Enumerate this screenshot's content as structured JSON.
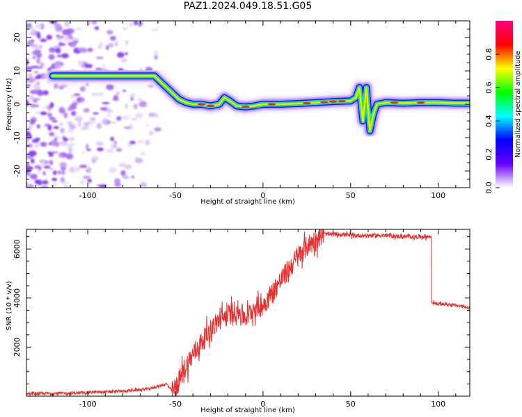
{
  "title": "PAZ1.2024.049.18.51.G05",
  "chart_data": [
    {
      "type": "heatmap",
      "xlabel": "Height of straight line (km)",
      "ylabel": "Frequency (Hz)",
      "xlim": [
        -135,
        118
      ],
      "ylim": [
        -25,
        25
      ],
      "xticks": [
        -100,
        -50,
        0,
        50,
        100
      ],
      "yticks": [
        -20,
        -10,
        0,
        10,
        20
      ],
      "colorbar": {
        "label": "Normalized spectral amplitude",
        "range": [
          0,
          1
        ],
        "ticks": [
          "0.0",
          "0.2",
          "0.4",
          "0.6",
          "0.8"
        ],
        "colors": [
          "#ffffff",
          "#6600ff",
          "#0000ff",
          "#00ffff",
          "#00ff00",
          "#ffff00",
          "#ff0000",
          "#ff0080"
        ]
      },
      "ridge": {
        "x": [
          -120,
          -100,
          -80,
          -62,
          -57,
          -52,
          -48,
          -44,
          -40,
          -35,
          -30,
          -25,
          -22,
          -19,
          -15,
          -10,
          -5,
          0,
          10,
          20,
          30,
          40,
          50,
          53,
          55,
          57,
          59,
          61,
          63,
          65,
          70,
          80,
          90,
          100,
          110,
          118
        ],
        "y": [
          8.5,
          8.5,
          8.5,
          8.5,
          6,
          3.5,
          1.5,
          0.5,
          0,
          0,
          -0.5,
          0,
          2,
          1,
          -0.5,
          -0.8,
          -0.5,
          0,
          0,
          0.2,
          0.5,
          0.8,
          1,
          2,
          5,
          -5,
          5,
          -8,
          -3,
          0,
          0.5,
          0.3,
          0.5,
          0.5,
          0.3,
          0.3
        ]
      }
    },
    {
      "type": "line",
      "xlabel": "Height of straight line (km)",
      "ylabel": "SNR (10 * v/v)",
      "xlim": [
        -135,
        118
      ],
      "ylim": [
        0,
        6800
      ],
      "xticks": [
        -100,
        -50,
        0,
        50,
        100
      ],
      "yticks": [
        2000,
        4000,
        6000
      ],
      "color": "#e83030",
      "series": [
        {
          "x": [
            -135,
            -110,
            -80,
            -65,
            -55,
            -52,
            -50,
            -45,
            -40,
            -35,
            -30,
            -25,
            -20,
            -15,
            -10,
            -5,
            0,
            5,
            10,
            15,
            20,
            25,
            30,
            35,
            40,
            45,
            50,
            55,
            60,
            70,
            80,
            90,
            96,
            97,
            100,
            105,
            110,
            115,
            118
          ],
          "y": [
            100,
            120,
            200,
            300,
            500,
            200,
            300,
            1100,
            1700,
            2200,
            2700,
            3100,
            3300,
            3500,
            3200,
            3600,
            3700,
            4200,
            4700,
            5200,
            5700,
            6100,
            6400,
            6600,
            6600,
            6600,
            6550,
            6550,
            6550,
            6550,
            6500,
            6500,
            6500,
            3800,
            3750,
            3750,
            3700,
            3650,
            3600
          ]
        }
      ]
    }
  ]
}
